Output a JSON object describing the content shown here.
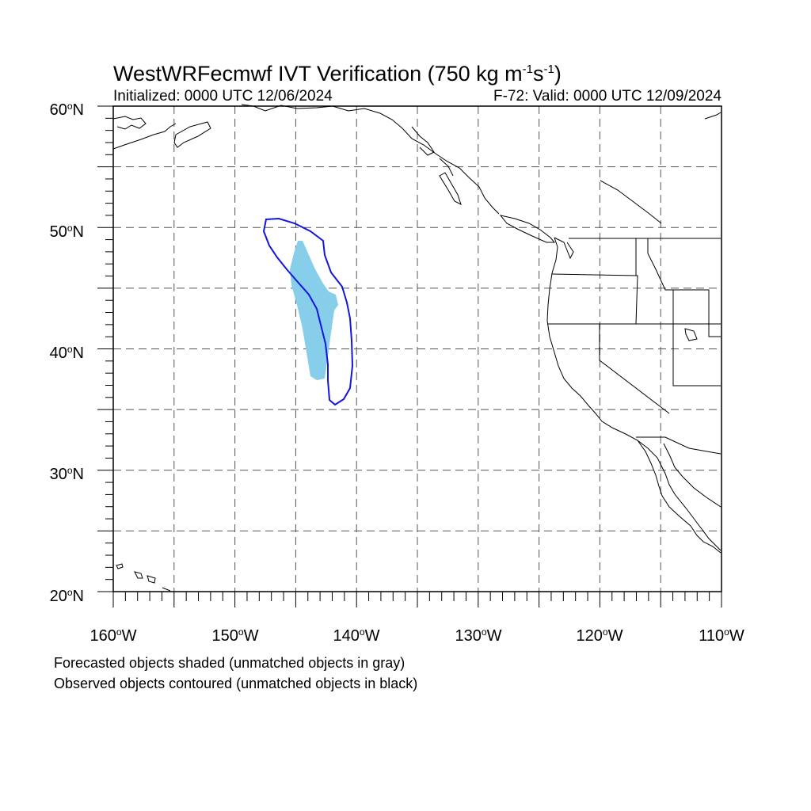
{
  "header": {
    "title_main": "WestWRFecmwf IVT Verification (750 kg m",
    "title_exp1": "-1",
    "title_mid": "s",
    "title_exp2": "-1",
    "title_end": ")",
    "initialized": "Initialized: 0000 UTC 12/06/2024",
    "valid": "F-72: Valid: 0000 UTC 12/09/2024"
  },
  "map": {
    "lon_range": [
      -160,
      -110
    ],
    "lat_range": [
      20,
      60
    ],
    "lat_labels": [
      "60",
      "50",
      "40",
      "30",
      "20"
    ],
    "lat_suffix": "N",
    "lon_labels": [
      "160",
      "150",
      "140",
      "130",
      "120",
      "110"
    ],
    "lon_suffix": "W",
    "degree_symbol": "o",
    "grid": "dashed every 5 degrees",
    "forecast_fill_color": "#87ceeb",
    "observed_contour_color": "#1010e0"
  },
  "notes": {
    "line1": "Forecasted objects shaded (unmatched objects in gray)",
    "line2": "Observed objects contoured (unmatched objects in black)"
  }
}
